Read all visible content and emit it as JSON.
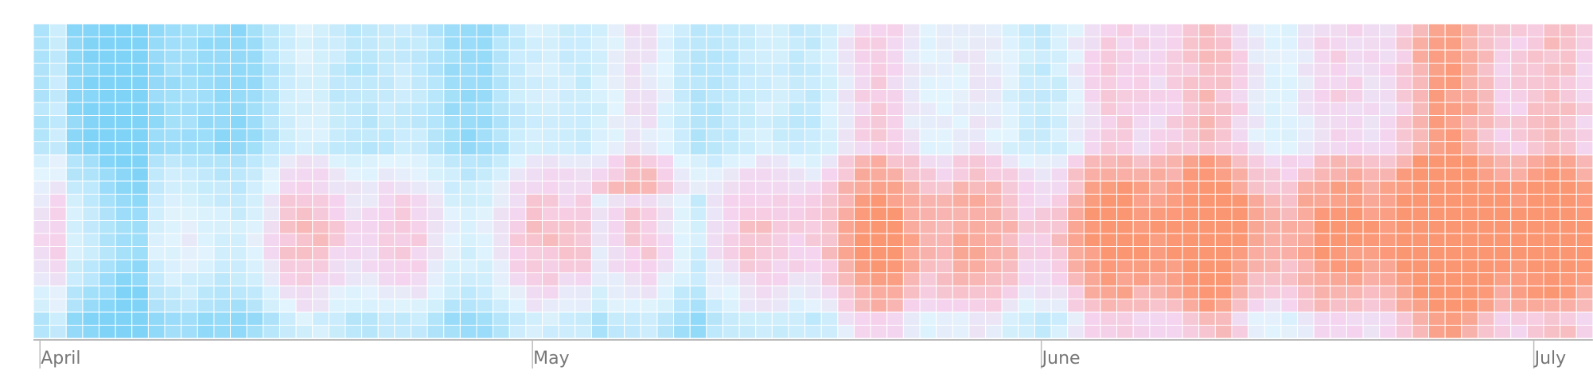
{
  "chart_data": {
    "type": "heatmap",
    "title": "",
    "xlabel": "",
    "ylabel": "",
    "x_ticks": [
      {
        "label": "April",
        "day": 1
      },
      {
        "label": "May",
        "day": 31
      },
      {
        "label": "June",
        "day": 62
      },
      {
        "label": "July",
        "day": 92
      }
    ],
    "days": 95,
    "hours": 24,
    "color_scale": {
      "domain": [
        -1,
        0,
        1
      ],
      "cold": "#7fd3f7",
      "neutral": "#e2f4fd",
      "warm": "#fb9673",
      "pink_mid": "#f5d3ee"
    },
    "grid_color": "#ffffff",
    "axis_color": "#bbbbbb"
  }
}
